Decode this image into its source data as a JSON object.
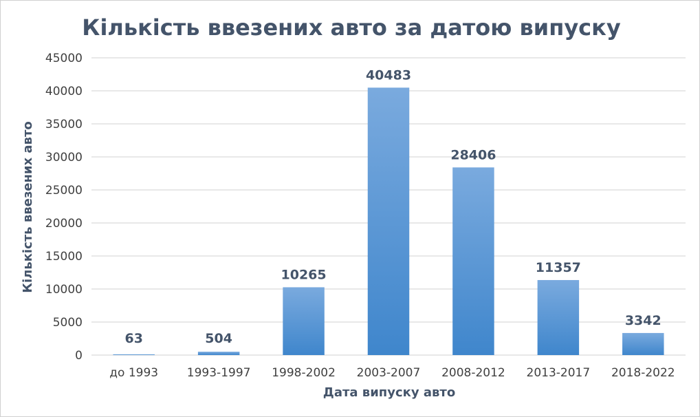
{
  "chart_data": {
    "type": "bar",
    "title": "Кількість ввезених авто за датою випуску",
    "xlabel": "Дата випуску авто",
    "ylabel": "Кількість ввезених авто",
    "categories": [
      "до 1993",
      "1993-1997",
      "1998-2002",
      "2003-2007",
      "2008-2012",
      "2013-2017",
      "2018-2022"
    ],
    "values": [
      63,
      504,
      10265,
      40483,
      28406,
      11357,
      3342
    ],
    "ylim": [
      0,
      45000
    ],
    "yticks": [
      0,
      5000,
      10000,
      15000,
      20000,
      25000,
      30000,
      35000,
      40000,
      45000
    ],
    "grid": true,
    "legend": "none",
    "colors": {
      "bar_top": "#7aaade",
      "bar_bottom": "#3f86cc",
      "grid": "#d9d9d9",
      "text": "#44546a",
      "ticks": "#404040"
    }
  }
}
